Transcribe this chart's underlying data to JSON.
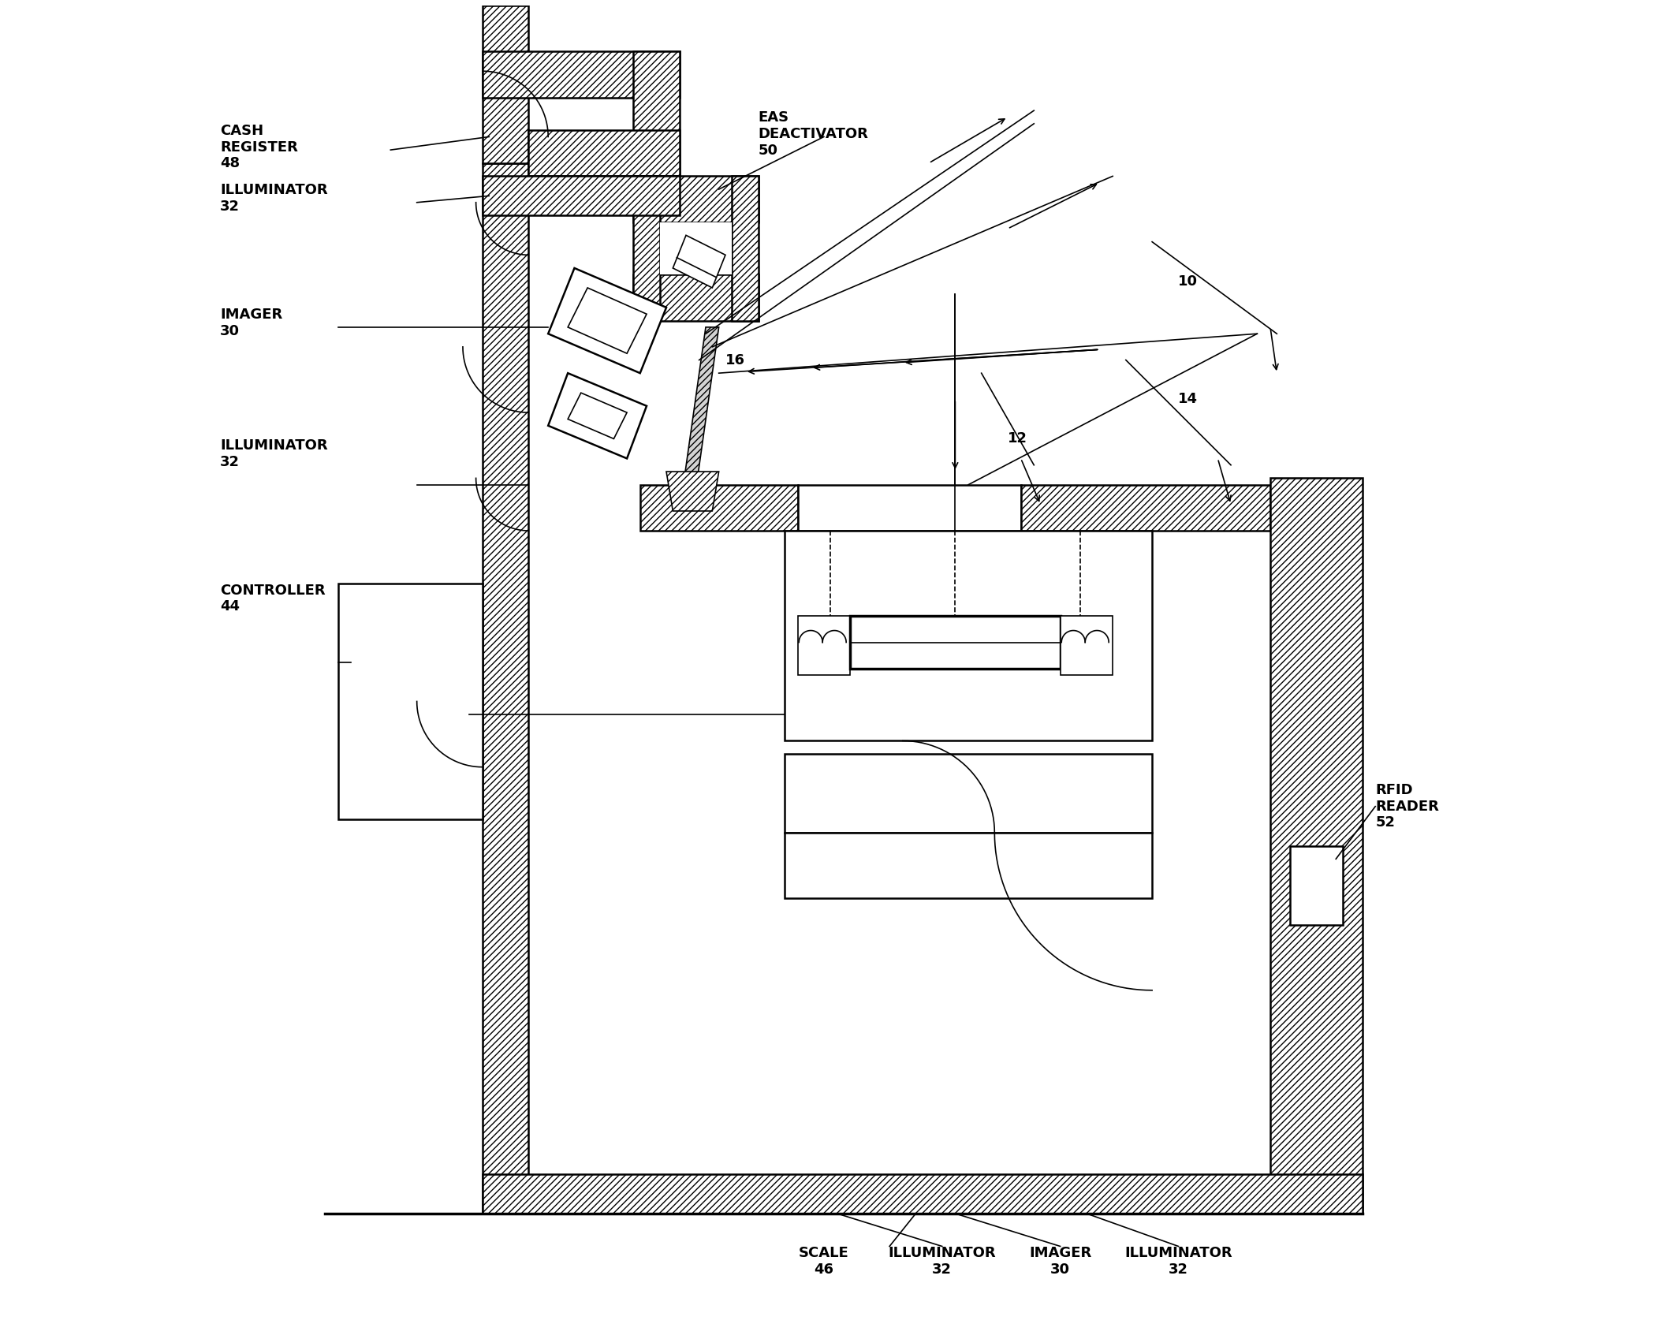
{
  "bg_color": "#ffffff",
  "lc": "#000000",
  "figsize": [
    21.23,
    16.79
  ],
  "dpi": 100,
  "labels": {
    "cash_register": "CASH\nREGISTER\n48",
    "eas_deactivator": "EAS\nDEACTIVATOR\n50",
    "illuminator_top": "ILLUMINATOR\n32",
    "imager_side": "IMAGER\n30",
    "illuminator_mid": "ILLUMINATOR\n32",
    "controller": "CONTROLLER\n44",
    "scale": "SCALE\n46",
    "illuminator_bot1": "ILLUMINATOR\n32",
    "imager_bot": "IMAGER\n30",
    "illuminator_bot2": "ILLUMINATOR\n32",
    "rfid_reader": "RFID\nREADER\n52",
    "ref_10": "10",
    "ref_12": "12",
    "ref_14": "14",
    "ref_16": "16"
  }
}
